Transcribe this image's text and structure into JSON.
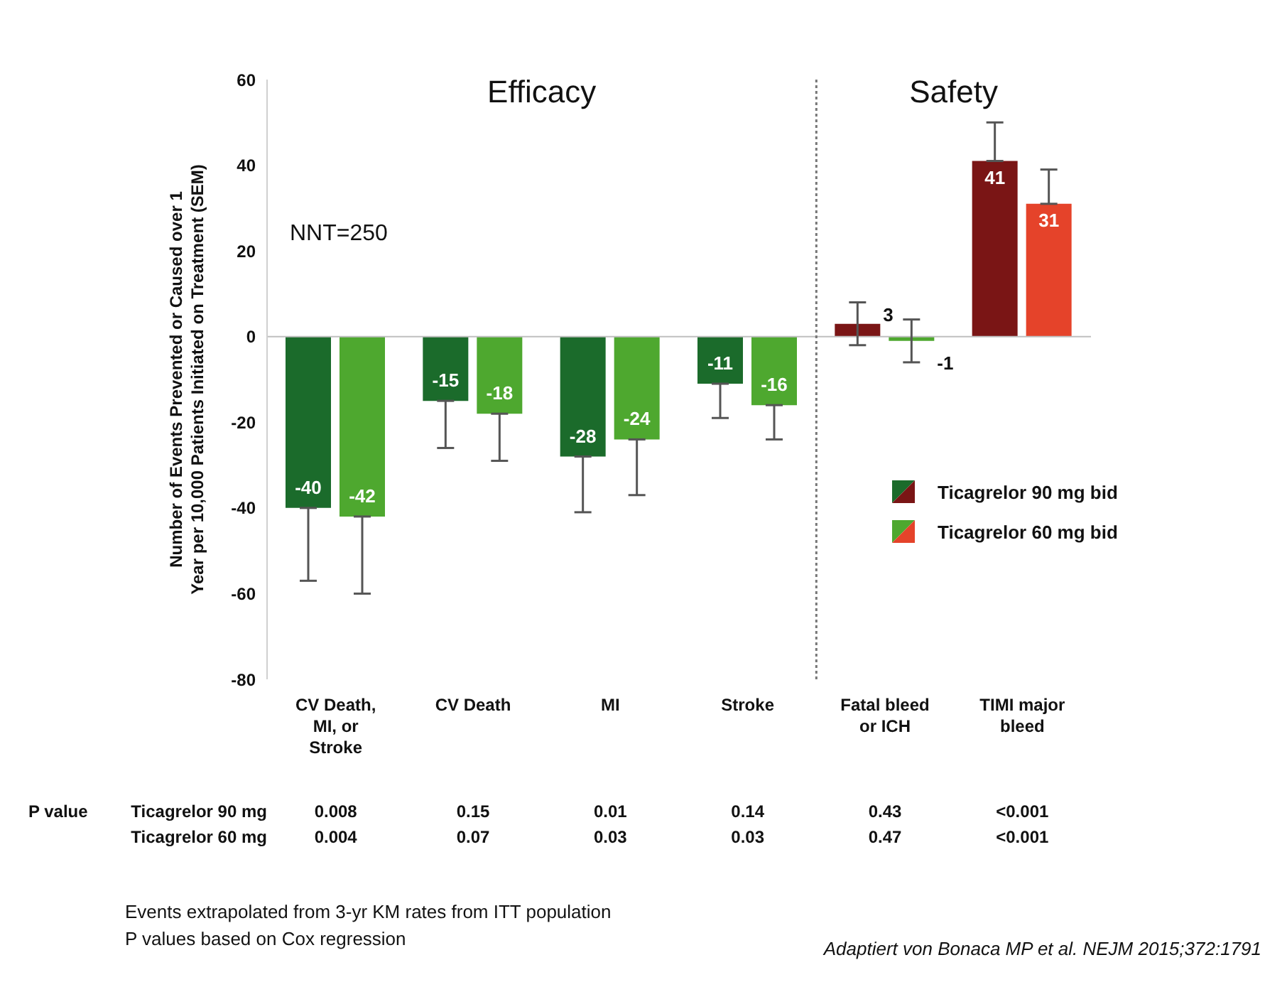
{
  "chart_data": {
    "type": "bar",
    "ylabel": "Number of Events Prevented or Caused over 1 Year per 10,000 Patients Initiated on Treatment (SEM)",
    "categories": [
      "CV Death, MI, or Stroke",
      "CV Death",
      "MI",
      "Stroke",
      "Fatal bleed or ICH",
      "TIMI major bleed"
    ],
    "series": [
      {
        "name": "Ticagrelor 90 mg bid",
        "colors": [
          "#1b6b2b",
          "#1b6b2b",
          "#1b6b2b",
          "#1b6b2b",
          "#7a1515",
          "#7a1515"
        ],
        "values": [
          -40,
          -15,
          -28,
          -11,
          3,
          41
        ],
        "errors": [
          [
            -57,
            -40
          ],
          [
            -26,
            -15
          ],
          [
            -41,
            -28
          ],
          [
            -19,
            -11
          ],
          [
            -2,
            8
          ],
          [
            41,
            50
          ]
        ]
      },
      {
        "name": "Ticagrelor 60 mg bid",
        "colors": [
          "#4ea82f",
          "#4ea82f",
          "#4ea82f",
          "#4ea82f",
          "#4ea82f",
          "#e5432a"
        ],
        "values": [
          -42,
          -18,
          -24,
          -16,
          -1,
          31
        ],
        "errors": [
          [
            -60,
            -42
          ],
          [
            -29,
            -18
          ],
          [
            -37,
            -24
          ],
          [
            -24,
            -16
          ],
          [
            -6,
            4
          ],
          [
            31,
            39
          ]
        ]
      }
    ],
    "ylim": [
      -80,
      60
    ],
    "yticks": [
      -80,
      -60,
      -40,
      -20,
      0,
      20,
      40,
      60
    ],
    "grid": false,
    "legend": "right",
    "data_labels": true,
    "ref_lines": [
      {
        "axis": "y",
        "value": 0,
        "color": "#bfbfbf"
      }
    ],
    "annotations": [
      "Efficacy",
      "Safety",
      "NNT=250",
      "P value",
      "Ticagrelor 90 mg",
      "0.008",
      "0.15",
      "0.01",
      "0.14",
      "0.43",
      "<0.001",
      "Ticagrelor 60 mg",
      "0.004",
      "0.07",
      "0.03",
      "0.03",
      "0.47",
      "<0.001",
      "Events extrapolated from 3-yr KM rates from ITT population",
      "P values based on Cox regression",
      "Adaptiert von Bonaca MP et al. NEJM 2015;372:1791"
    ]
  }
}
